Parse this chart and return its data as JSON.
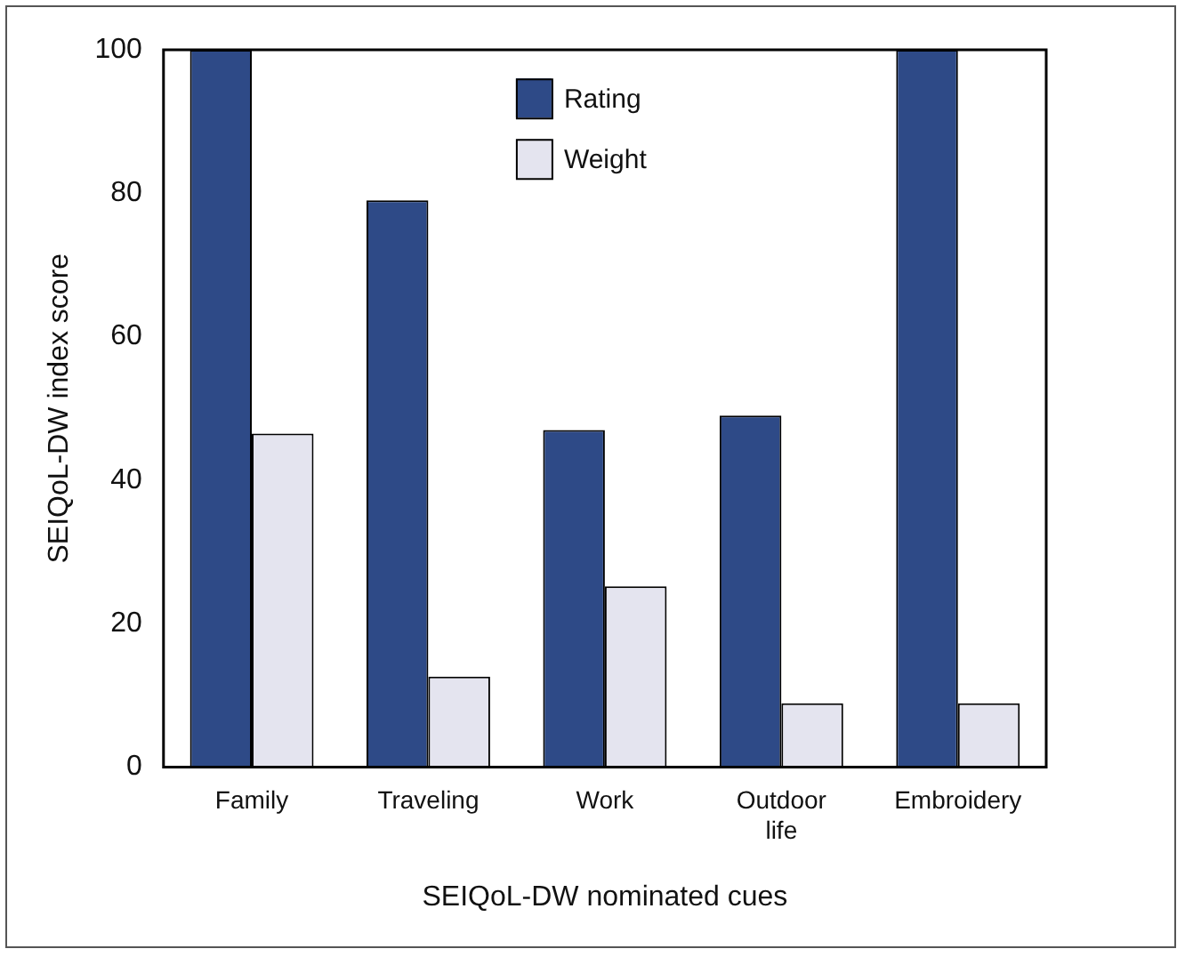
{
  "chart_data": {
    "type": "bar",
    "xlabel": "SEIQoL-DW nominated cues",
    "ylabel": "SEIQoL-DW index score",
    "categories": [
      "Family",
      "Traveling",
      "Work",
      "Outdoor life",
      "Embroidery"
    ],
    "series": [
      {
        "name": "Rating",
        "color": "#2e4a87",
        "values": [
          100,
          79,
          47,
          49,
          100
        ]
      },
      {
        "name": "Weight",
        "color": "#e4e4ef",
        "values": [
          46.5,
          12.6,
          25.2,
          8.9,
          8.9
        ]
      }
    ],
    "ylim": [
      0,
      100
    ],
    "yticks": [
      0,
      20,
      40,
      60,
      80,
      100
    ],
    "grid": false,
    "legend": "top"
  }
}
